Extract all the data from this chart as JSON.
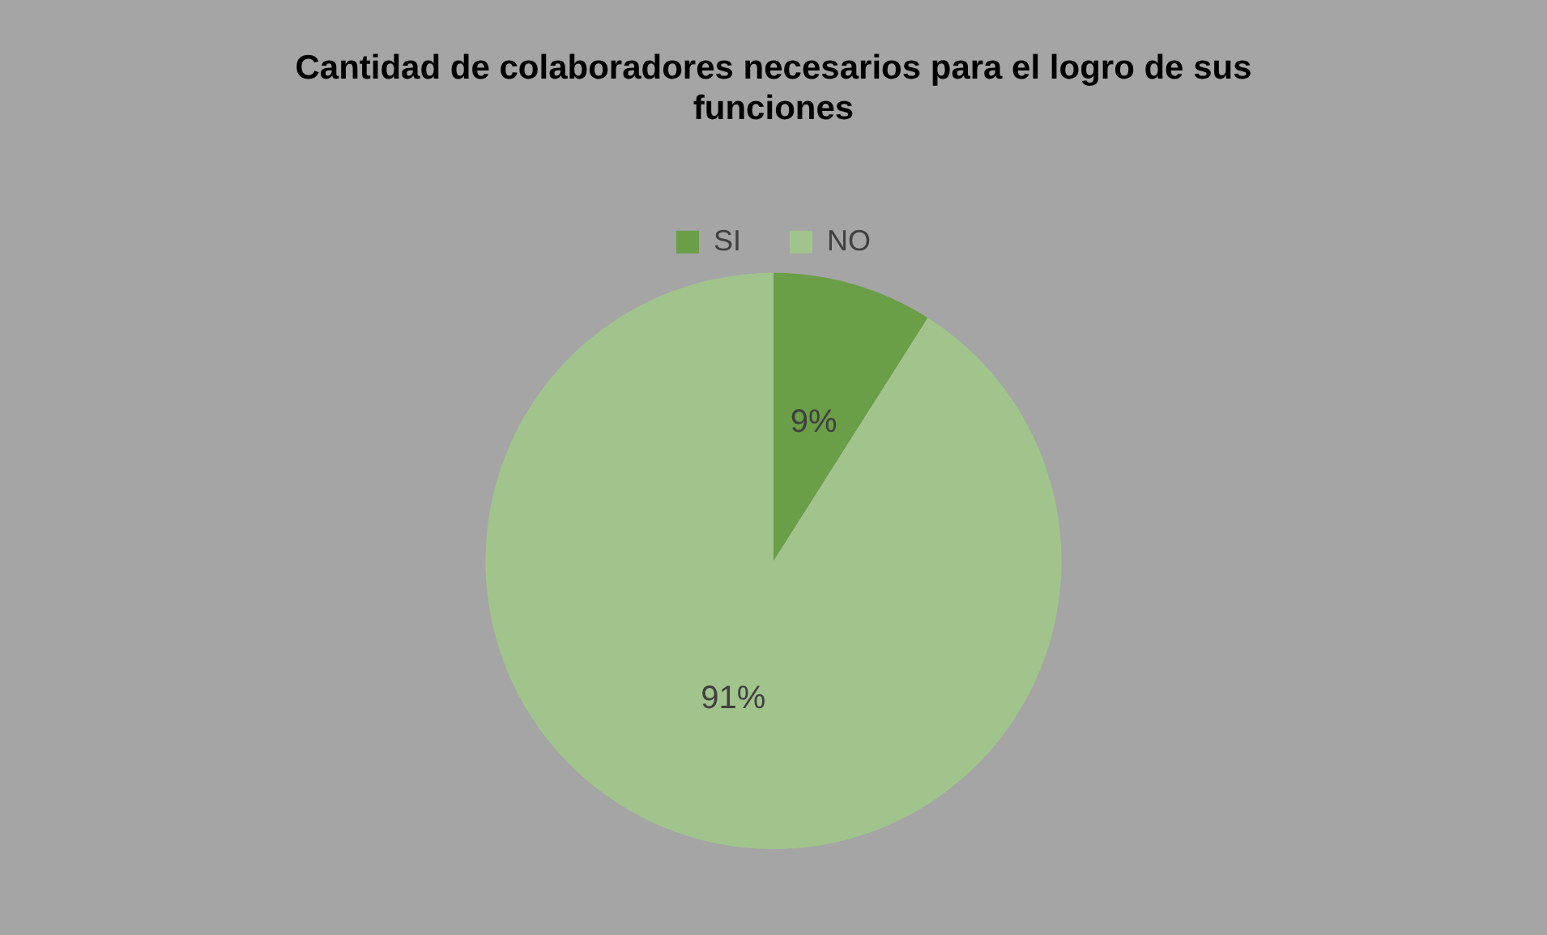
{
  "chart_data": {
    "type": "pie",
    "title": "Cantidad de colaboradores necesarios para el logro de sus funciones",
    "categories": [
      "SI",
      "NO"
    ],
    "values": [
      9,
      91
    ],
    "colors": [
      "#6a9e47",
      "#a1c48d"
    ],
    "legend": "top",
    "value_labels": [
      "9%",
      "91%"
    ]
  }
}
